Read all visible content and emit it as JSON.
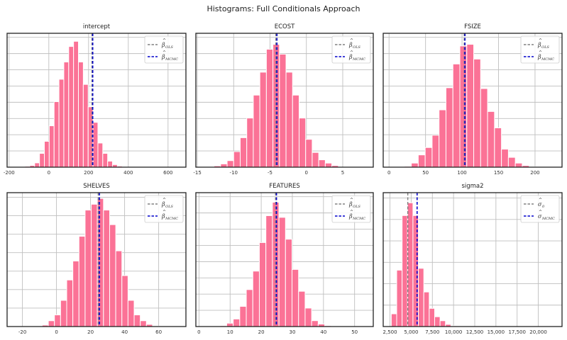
{
  "figure": {
    "title": "Histograms: Full Conditionals Approach",
    "colors": {
      "bar": "#fb7296",
      "bar_edge": "#ffffff",
      "ols_line": "#808080",
      "mcmc_line": "#0000cc",
      "grid": "#bfbfbf",
      "axes": "#222222"
    }
  },
  "chart_data": [
    {
      "type": "bar",
      "title": "intercept",
      "xlim": [
        -210,
        690
      ],
      "xticks": [
        -200,
        0,
        200,
        400,
        600
      ],
      "xtick_labels": [
        "-200",
        "0",
        "200",
        "400",
        "600"
      ],
      "bin_start": -145,
      "bin_width": 24.5,
      "values": [
        0.2,
        0.5,
        1,
        2.5,
        8,
        15,
        24,
        38,
        51,
        61,
        70,
        73,
        61,
        48,
        35,
        26,
        14,
        8,
        3.5,
        1.5,
        0.6,
        0
      ],
      "ymax": 76,
      "ygrid_count": 8,
      "ols_x": 217,
      "mcmc_x": 221,
      "legend": [
        "β̂_OLS",
        "β̂_MCMC"
      ],
      "legend_tex": [
        [
          "β",
          "OLS"
        ],
        [
          "β",
          "MCMC"
        ]
      ],
      "grid": true,
      "legend_position": "upper right"
    },
    {
      "type": "bar",
      "title": "ECOST",
      "xlim": [
        -15.2,
        9.2
      ],
      "xticks": [
        -15,
        -10,
        -5,
        0,
        5
      ],
      "xtick_labels": [
        "-15",
        "-10",
        "-5",
        "0",
        "5"
      ],
      "bin_start": -13.6,
      "bin_width": 0.9,
      "values": [
        0.3,
        0.8,
        2,
        4,
        9.5,
        18,
        30,
        44,
        58,
        72,
        75,
        69,
        58,
        44,
        30,
        17,
        9,
        4.5,
        2.5,
        1,
        0
      ],
      "ymax": 80,
      "ygrid_count": 8,
      "ols_x": -4.2,
      "mcmc_x": -4.05,
      "legend": [
        "β̂_OLS",
        "β̂_MCMC"
      ],
      "legend_tex": [
        [
          "β",
          "OLS"
        ],
        [
          "β",
          "MCMC"
        ]
      ],
      "grid": true,
      "legend_position": "upper right"
    },
    {
      "type": "bar",
      "title": "FSIZE",
      "xlim": [
        -8,
        237
      ],
      "xticks": [
        0,
        50,
        100,
        150,
        200
      ],
      "xtick_labels": [
        "0",
        "50",
        "100",
        "150",
        "200"
      ],
      "bin_start": 21,
      "bin_width": 9.5,
      "values": [
        0.5,
        2.5,
        7.5,
        12,
        19.5,
        35,
        48.5,
        63,
        74,
        75,
        66,
        48,
        34,
        24,
        11,
        6,
        2.5,
        1,
        0.3
      ],
      "ymax": 80,
      "ygrid_count": 8,
      "ols_x": 103,
      "mcmc_x": 104,
      "legend": [
        "β̂_OLS",
        "β̂_MCMC"
      ],
      "legend_tex": [
        [
          "β",
          "OLS"
        ],
        [
          "β",
          "MCMC"
        ]
      ],
      "grid": true,
      "legend_position": "upper right"
    },
    {
      "type": "bar",
      "title": "SHELVES",
      "xlim": [
        -29,
        76
      ],
      "xticks": [
        -20,
        0,
        20,
        40,
        60
      ],
      "xtick_labels": [
        "-20",
        "0",
        "20",
        "40",
        "60"
      ],
      "bin_start": -12,
      "bin_width": 3.6,
      "values": [
        0.3,
        1,
        4,
        8,
        18,
        32,
        45,
        62,
        80,
        84,
        88,
        80,
        70,
        52,
        35,
        18,
        8,
        4,
        1.5,
        0.3
      ],
      "ymax": 90,
      "ygrid_count": 7,
      "ols_x": 24.5,
      "mcmc_x": 25.2,
      "legend": [
        "β̂_OLS",
        "β̂_MCMC"
      ],
      "legend_tex": [
        [
          "β",
          "OLS"
        ],
        [
          "β",
          "MCMC"
        ]
      ],
      "grid": true,
      "legend_position": "upper right"
    },
    {
      "type": "bar",
      "title": "FEATURES",
      "xlim": [
        -1,
        56
      ],
      "xticks": [
        0,
        10,
        20,
        30,
        40,
        50
      ],
      "xtick_labels": [
        "0",
        "10",
        "20",
        "30",
        "40",
        "50"
      ],
      "bin_start": 6.8,
      "bin_width": 2.1,
      "values": [
        0.5,
        2,
        4.5,
        12,
        22,
        33,
        50,
        66,
        74,
        65,
        52,
        34,
        21,
        11,
        3.5,
        1.5,
        0.5
      ],
      "ymax": 78,
      "ygrid_count": 8,
      "ols_x": 24.6,
      "mcmc_x": 24.9,
      "legend": [
        "β̂_OLS",
        "β̂_MCMC"
      ],
      "legend_tex": [
        [
          "β",
          "OLS"
        ],
        [
          "β",
          "MCMC"
        ]
      ],
      "grid": true,
      "legend_position": "upper right"
    },
    {
      "type": "bar",
      "title": "sigma2",
      "xlim": [
        1700,
        22800
      ],
      "xticks": [
        2500,
        5000,
        7500,
        10000,
        12500,
        15000,
        17500,
        20000
      ],
      "xtick_labels": [
        "2,500",
        "5,000",
        "7,500",
        "10,000",
        "12,500",
        "15,000",
        "17,500",
        "20,000"
      ],
      "bin_start": 2650,
      "bin_width": 640,
      "values": [
        3.5,
        15.5,
        30.5,
        34,
        30.5,
        16,
        9.5,
        5,
        2.7,
        1.6,
        0.6,
        0.2,
        0.05,
        0
      ],
      "ymax": 36,
      "ygrid_count": 6,
      "ols_x": 4600,
      "mcmc_x": 5700,
      "legend": [
        "σ̂²_0",
        "σ̂²_MCMC"
      ],
      "legend_tex": [
        [
          "σ",
          "0"
        ],
        [
          "σ",
          "MCMC"
        ]
      ],
      "grid": true,
      "legend_position": "upper right"
    }
  ]
}
